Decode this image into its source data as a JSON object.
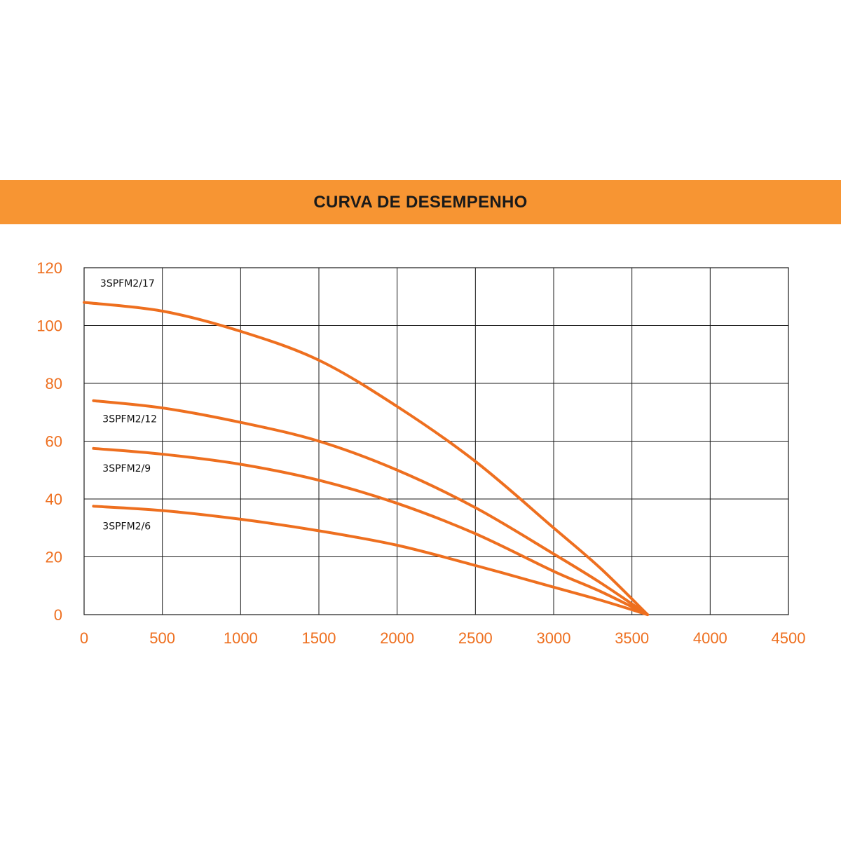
{
  "colors": {
    "banner": "#f79533",
    "curve": "#ee6f1f",
    "axis_text": "#ee6f1f",
    "grid": "#1a1a1a"
  },
  "banner": {
    "title": "CURVA DE DESEMPENHO"
  },
  "chart_data": {
    "type": "line",
    "title": "CURVA DE DESEMPENHO",
    "xlabel": "",
    "ylabel": "",
    "xlim": [
      0,
      4500
    ],
    "ylim": [
      0,
      120
    ],
    "xticks": [
      0,
      500,
      1000,
      1500,
      2000,
      2500,
      3000,
      3500,
      4000,
      4500
    ],
    "yticks": [
      0,
      20,
      40,
      60,
      80,
      100,
      120
    ],
    "grid": true,
    "series": [
      {
        "name": "3SPFM2/17",
        "x": [
          0,
          500,
          1000,
          1500,
          2000,
          2500,
          3000,
          3300,
          3600
        ],
        "y": [
          108,
          105,
          98,
          88,
          72,
          53,
          30,
          16,
          0
        ]
      },
      {
        "name": "3SPFM2/12",
        "x": [
          60,
          500,
          1000,
          1500,
          2000,
          2500,
          3000,
          3300,
          3600
        ],
        "y": [
          74,
          71.5,
          66.5,
          60,
          50,
          37,
          21,
          11,
          0
        ]
      },
      {
        "name": "3SPFM2/9",
        "x": [
          60,
          500,
          1000,
          1500,
          2000,
          2500,
          3000,
          3300,
          3600
        ],
        "y": [
          57.5,
          55.5,
          52,
          46.5,
          38.5,
          28,
          15,
          8,
          0
        ]
      },
      {
        "name": "3SPFM2/6",
        "x": [
          60,
          500,
          1000,
          1500,
          2000,
          2500,
          3000,
          3300,
          3600
        ],
        "y": [
          37.5,
          36,
          33,
          29,
          24,
          17,
          9.5,
          5,
          0
        ]
      }
    ]
  }
}
